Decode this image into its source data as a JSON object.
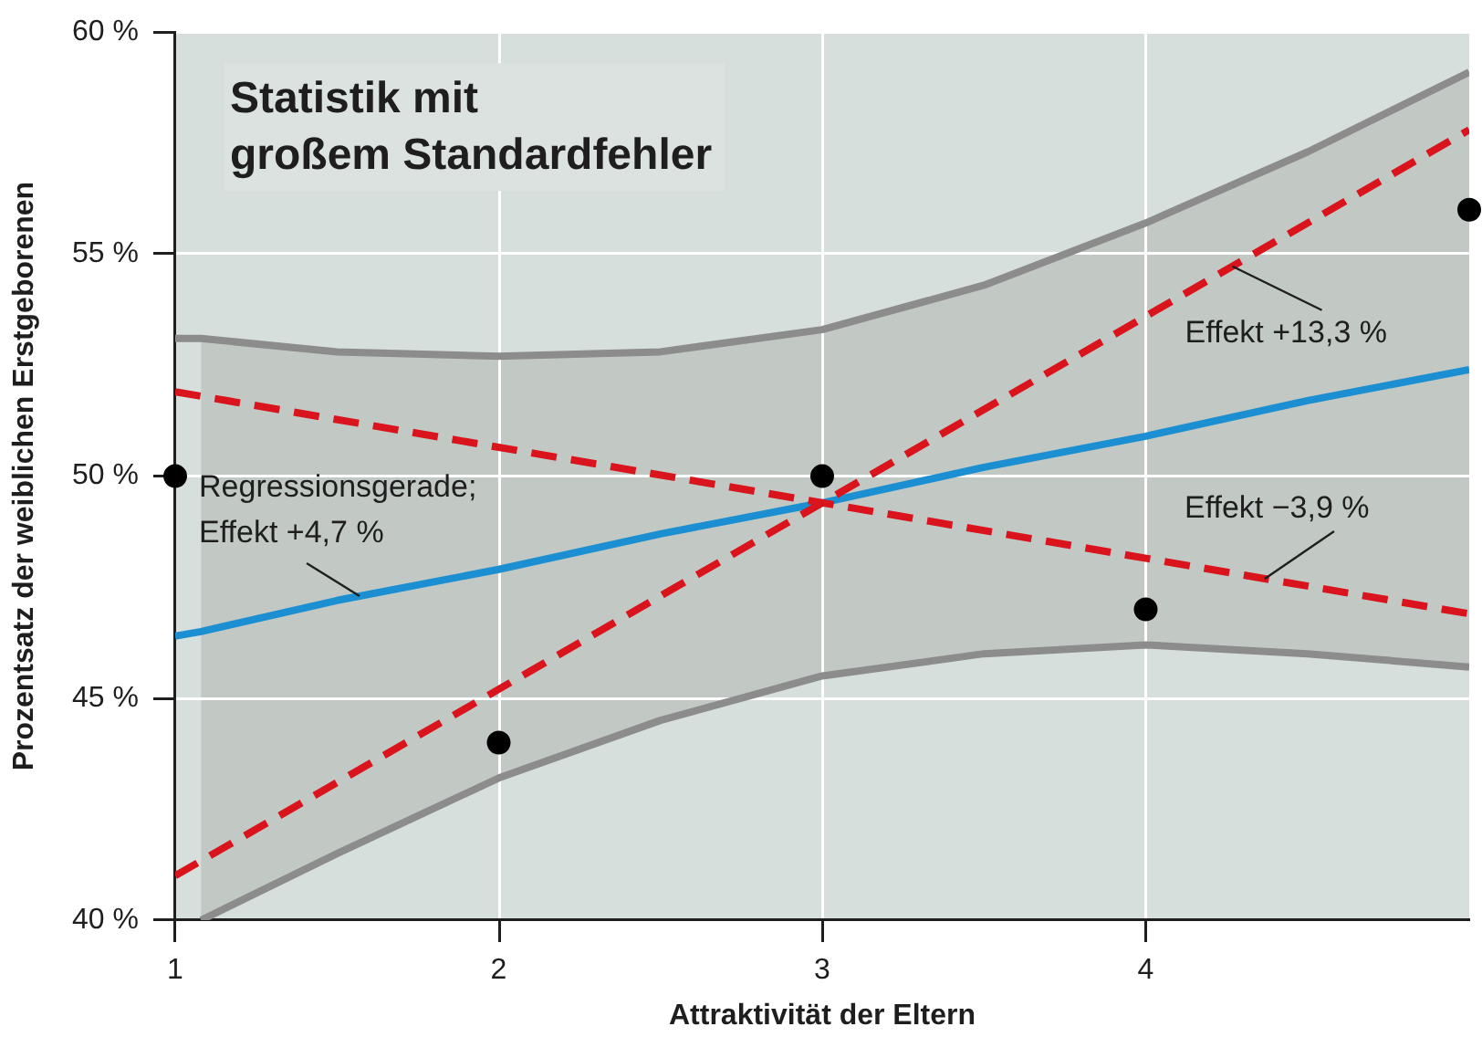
{
  "chart_data": {
    "type": "line",
    "title": "Statistik mit\ngroßem Standardfehler",
    "xlabel": "Attraktivität der Eltern",
    "ylabel": "Prozentsatz der weiblichen Erstgeborenen",
    "xlim": [
      1,
      5
    ],
    "xticks": [
      1,
      2,
      3,
      4
    ],
    "ylim": [
      40,
      60
    ],
    "yticks": [
      {
        "value": 40,
        "label": "40 %"
      },
      {
        "value": 45,
        "label": "45 %"
      },
      {
        "value": 50,
        "label": "50 %"
      },
      {
        "value": 55,
        "label": "55 %"
      },
      {
        "value": 60,
        "label": "60 %"
      }
    ],
    "grid": true,
    "legend": false,
    "series": [
      {
        "color": "#8c8c8c",
        "line_style": "solid",
        "x": [
          1,
          1.08,
          1.5,
          2,
          2.5,
          3,
          3.5,
          4,
          4.5,
          5
        ],
        "values": [
          53.1,
          53.1,
          52.8,
          52.7,
          52.8,
          53.3,
          54.3,
          55.7,
          57.3,
          59.1
        ]
      },
      {
        "color": "#8c8c8c",
        "line_style": "solid",
        "x": [
          1.08,
          1.5,
          2,
          2.5,
          3,
          3.5,
          4,
          4.5,
          5
        ],
        "values": [
          40.0,
          41.5,
          43.2,
          44.5,
          45.5,
          46.0,
          46.2,
          46.0,
          45.7
        ]
      },
      {
        "name": "Regressionsgerade;\nEffekt +4,7 %",
        "color": "#1b8fd2",
        "line_style": "solid",
        "x": [
          1,
          1.08,
          1.5,
          2,
          2.5,
          3,
          3.5,
          4,
          4.5,
          5
        ],
        "values": [
          46.4,
          46.5,
          47.2,
          47.9,
          48.7,
          49.4,
          50.2,
          50.9,
          51.7,
          52.4
        ],
        "lower": [
          null,
          40.0,
          41.5,
          43.2,
          44.5,
          45.5,
          46.0,
          46.2,
          46.0,
          45.7
        ],
        "upper": [
          null,
          53.1,
          52.8,
          52.7,
          52.8,
          53.3,
          54.3,
          55.7,
          57.3,
          59.1
        ]
      },
      {
        "name": "Effekt +13,3 %",
        "color": "#d9141d",
        "line_style": "dashed",
        "x": [
          1,
          5
        ],
        "values": [
          41.0,
          57.8
        ]
      },
      {
        "name": "Effekt −3,9 %",
        "color": "#d9141d",
        "line_style": "dashed",
        "x": [
          1,
          5
        ],
        "values": [
          51.9,
          46.9
        ]
      },
      {
        "type": "scatter",
        "color": "#000000",
        "marker": "circle",
        "x": [
          1,
          2,
          3,
          4,
          5
        ],
        "values": [
          50,
          44,
          50,
          47,
          56
        ]
      }
    ]
  }
}
